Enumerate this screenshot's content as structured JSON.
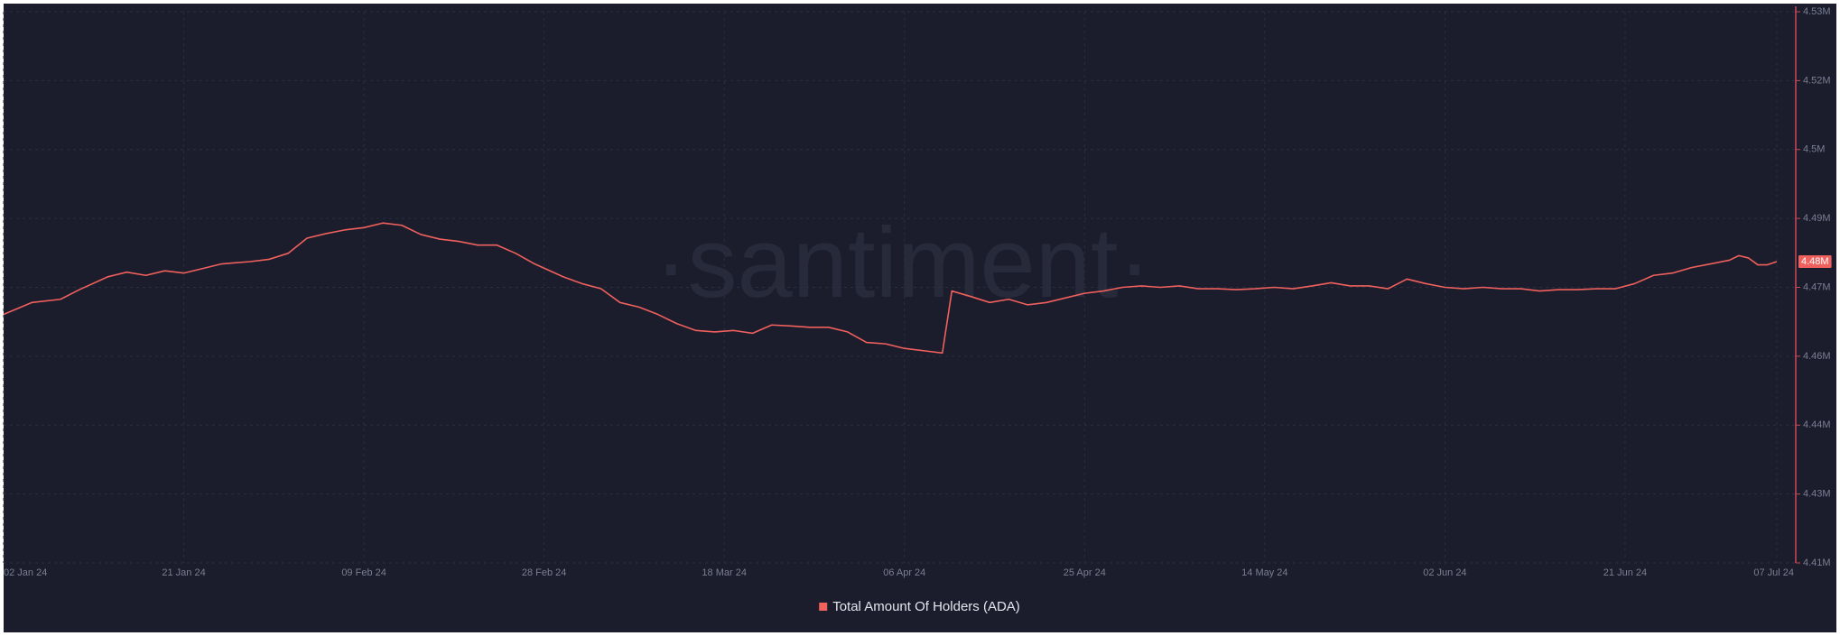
{
  "chart_data": {
    "type": "line",
    "watermark": "·santiment·",
    "x": [
      "2024-01-02",
      "2024-01-05",
      "2024-01-08",
      "2024-01-10",
      "2024-01-13",
      "2024-01-15",
      "2024-01-17",
      "2024-01-19",
      "2024-01-21",
      "2024-01-23",
      "2024-01-25",
      "2024-01-28",
      "2024-01-30",
      "2024-02-01",
      "2024-02-03",
      "2024-02-05",
      "2024-02-07",
      "2024-02-09",
      "2024-02-11",
      "2024-02-13",
      "2024-02-15",
      "2024-02-17",
      "2024-02-19",
      "2024-02-21",
      "2024-02-23",
      "2024-02-25",
      "2024-02-27",
      "2024-03-01",
      "2024-03-03",
      "2024-03-05",
      "2024-03-07",
      "2024-03-09",
      "2024-03-11",
      "2024-03-13",
      "2024-03-15",
      "2024-03-17",
      "2024-03-19",
      "2024-03-21",
      "2024-03-23",
      "2024-03-25",
      "2024-03-27",
      "2024-03-29",
      "2024-03-31",
      "2024-04-02",
      "2024-04-04",
      "2024-04-06",
      "2024-04-08",
      "2024-04-10",
      "2024-04-11",
      "2024-04-13",
      "2024-04-15",
      "2024-04-17",
      "2024-04-19",
      "2024-04-21",
      "2024-04-23",
      "2024-04-25",
      "2024-04-27",
      "2024-04-29",
      "2024-05-01",
      "2024-05-03",
      "2024-05-05",
      "2024-05-07",
      "2024-05-09",
      "2024-05-11",
      "2024-05-13",
      "2024-05-15",
      "2024-05-17",
      "2024-05-19",
      "2024-05-21",
      "2024-05-23",
      "2024-05-25",
      "2024-05-27",
      "2024-05-29",
      "2024-05-31",
      "2024-06-02",
      "2024-06-04",
      "2024-06-06",
      "2024-06-08",
      "2024-06-10",
      "2024-06-12",
      "2024-06-14",
      "2024-06-16",
      "2024-06-18",
      "2024-06-20",
      "2024-06-22",
      "2024-06-24",
      "2024-06-26",
      "2024-06-28",
      "2024-06-30",
      "2024-07-02",
      "2024-07-03",
      "2024-07-04",
      "2024-07-05",
      "2024-07-06",
      "2024-07-07"
    ],
    "series": [
      {
        "name": "Total Amount Of Holders (ADA)",
        "color": "#f0605d",
        "values": [
          4464100,
          4466700,
          4467400,
          4469500,
          4472300,
          4473300,
          4472600,
          4473600,
          4473100,
          4474100,
          4475100,
          4475600,
          4476100,
          4477400,
          4480700,
          4481700,
          4482500,
          4483000,
          4484000,
          4483500,
          4481500,
          4480500,
          4480000,
          4479200,
          4479200,
          4477400,
          4475100,
          4472300,
          4470800,
          4469700,
          4466700,
          4465700,
          4464100,
          4462100,
          4460600,
          4460300,
          4460600,
          4460000,
          4461800,
          4461600,
          4461300,
          4461300,
          4460300,
          4458000,
          4457700,
          4456700,
          4456200,
          4455700,
          4469200,
          4468000,
          4466700,
          4467400,
          4466200,
          4466700,
          4467700,
          4468700,
          4469200,
          4470000,
          4470300,
          4470000,
          4470300,
          4469700,
          4469700,
          4469500,
          4469700,
          4470000,
          4469700,
          4470300,
          4471000,
          4470300,
          4470300,
          4469700,
          4471800,
          4470800,
          4470000,
          4469700,
          4470000,
          4469700,
          4469700,
          4469200,
          4469500,
          4469500,
          4469700,
          4469700,
          4470800,
          4472600,
          4473100,
          4474300,
          4475100,
          4475900,
          4476900,
          4476400,
          4474900,
          4474900,
          4475600
        ],
        "last_value_label": "4.48M"
      }
    ],
    "xlim": [
      "2024-01-02",
      "2024-07-09"
    ],
    "xticks": [
      {
        "value": "2024-01-02",
        "label": "02 Jan 24"
      },
      {
        "value": "2024-01-21",
        "label": "21 Jan 24"
      },
      {
        "value": "2024-02-09",
        "label": "09 Feb 24"
      },
      {
        "value": "2024-02-28",
        "label": "28 Feb 24"
      },
      {
        "value": "2024-03-18",
        "label": "18 Mar 24"
      },
      {
        "value": "2024-04-06",
        "label": "06 Apr 24"
      },
      {
        "value": "2024-04-25",
        "label": "25 Apr 24"
      },
      {
        "value": "2024-05-14",
        "label": "14 May 24"
      },
      {
        "value": "2024-06-02",
        "label": "02 Jun 24"
      },
      {
        "value": "2024-06-21",
        "label": "21 Jun 24"
      },
      {
        "value": "2024-07-07",
        "label": "07 Jul 24"
      }
    ],
    "ylim": [
      4410000,
      4530000
    ],
    "yticks": [
      {
        "value": 4410000,
        "label": "4.41M"
      },
      {
        "value": 4425000,
        "label": "4.43M"
      },
      {
        "value": 4440000,
        "label": "4.44M"
      },
      {
        "value": 4455000,
        "label": "4.46M"
      },
      {
        "value": 4470000,
        "label": "4.47M"
      },
      {
        "value": 4485000,
        "label": "4.49M"
      },
      {
        "value": 4500000,
        "label": "4.5M"
      },
      {
        "value": 4515000,
        "label": "4.52M"
      },
      {
        "value": 4530000,
        "label": "4.53M"
      }
    ],
    "grid": true
  }
}
